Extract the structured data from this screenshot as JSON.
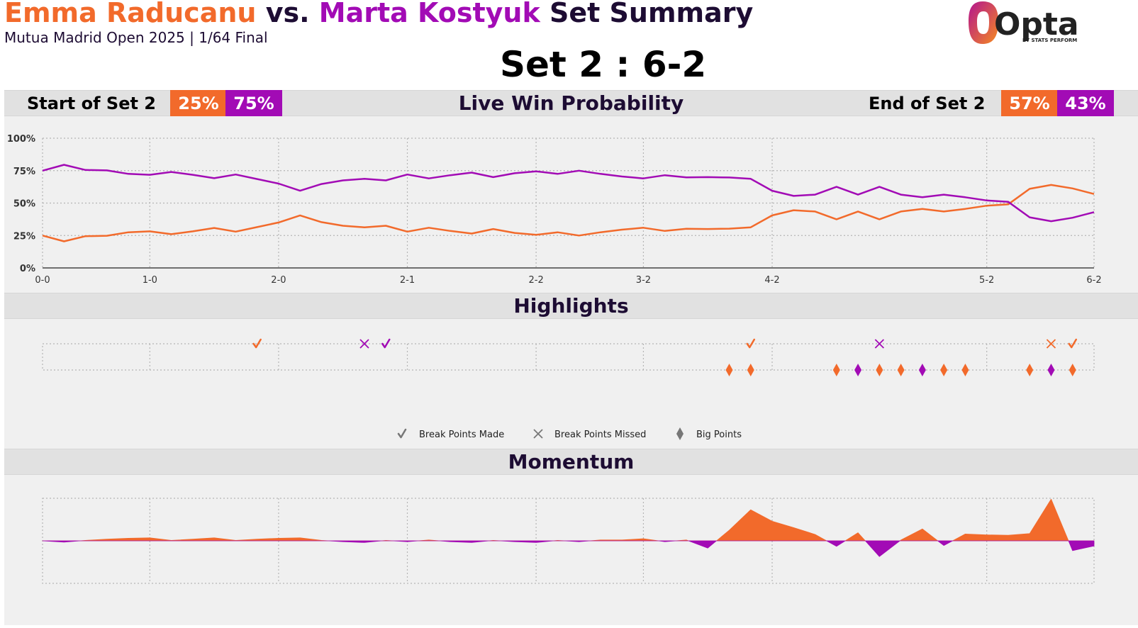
{
  "header": {
    "player1": "Emma Raducanu",
    "vs": "vs.",
    "player2": "Marta Kostyuk",
    "suffix": "Set Summary",
    "subtitle": "Mutua Madrid Open 2025 | 1/64 Final",
    "set_score": "Set 2 : 6-2",
    "logo_text": "Opta",
    "logo_sub": "BY STATS PERFORM"
  },
  "colors": {
    "player1": "#f26a2b",
    "player2": "#a20bb5",
    "title": "#1d0c33"
  },
  "probability_band": {
    "title": "Live Win Probability",
    "start_label": "Start of Set 2",
    "start_p1": "25%",
    "start_p2": "75%",
    "end_label": "End of Set 2",
    "end_p1": "57%",
    "end_p2": "43%"
  },
  "highlights_band": {
    "title": "Highlights"
  },
  "momentum_band": {
    "title": "Momentum"
  },
  "legend": {
    "made": "Break Points Made",
    "missed": "Break Points Missed",
    "big": "Big Points"
  },
  "chart_data": [
    {
      "type": "line",
      "y_ticks": [
        "0%",
        "25%",
        "50%",
        "75%",
        "100%"
      ],
      "ylim": [
        0,
        100
      ],
      "x_range": [
        0,
        49
      ],
      "game_ticks": [
        {
          "x": 0,
          "label": "0-0"
        },
        {
          "x": 5,
          "label": "1-0"
        },
        {
          "x": 11,
          "label": "2-0"
        },
        {
          "x": 17,
          "label": "2-1"
        },
        {
          "x": 23,
          "label": "2-2"
        },
        {
          "x": 28,
          "label": "3-2"
        },
        {
          "x": 34,
          "label": "4-2"
        },
        {
          "x": 44,
          "label": "5-2"
        },
        {
          "x": 49,
          "label": "6-2"
        }
      ],
      "series": [
        {
          "name": "Emma Raducanu",
          "color": "#f26a2b",
          "values": [
            25,
            20.5,
            24.5,
            24.8,
            27.5,
            28.2,
            26,
            28.2,
            30.8,
            28,
            31.5,
            35,
            40.5,
            35.3,
            32.5,
            31.3,
            32.5,
            28,
            31,
            28.5,
            26.5,
            30,
            27,
            25.5,
            27.5,
            25,
            27.5,
            29.5,
            31,
            28.5,
            30.2,
            30,
            30.3,
            31.3,
            40.5,
            44.5,
            43.5,
            37.5,
            43.5,
            37.5,
            43.5,
            45.5,
            43.5,
            45.5,
            48,
            49,
            61,
            64,
            61.3,
            57
          ]
        },
        {
          "name": "Marta Kostyuk",
          "color": "#a20bb5",
          "values": [
            75,
            79.5,
            75.5,
            75.2,
            72.5,
            71.8,
            74,
            71.8,
            69.2,
            72,
            68.5,
            65,
            59.5,
            64.7,
            67.5,
            68.7,
            67.5,
            72,
            69,
            71.5,
            73.5,
            70,
            73,
            74.5,
            72.5,
            75,
            72.5,
            70.5,
            69,
            71.5,
            69.8,
            70,
            69.7,
            68.7,
            59.5,
            55.5,
            56.5,
            62.5,
            56.5,
            62.5,
            56.5,
            54.5,
            56.5,
            54.5,
            52,
            51,
            39,
            36,
            38.7,
            43
          ]
        }
      ]
    },
    {
      "type": "scatter",
      "rows": [
        "break points",
        "big points"
      ],
      "break_points": [
        {
          "x": 10,
          "kind": "made",
          "player": "Emma Raducanu"
        },
        {
          "x": 15,
          "kind": "missed",
          "player": "Marta Kostyuk"
        },
        {
          "x": 16,
          "kind": "made",
          "player": "Marta Kostyuk"
        },
        {
          "x": 33,
          "kind": "made",
          "player": "Emma Raducanu"
        },
        {
          "x": 39,
          "kind": "missed",
          "player": "Marta Kostyuk"
        },
        {
          "x": 47,
          "kind": "missed",
          "player": "Emma Raducanu"
        },
        {
          "x": 48,
          "kind": "made",
          "player": "Emma Raducanu"
        }
      ],
      "big_points": [
        {
          "x": 32,
          "player": "Emma Raducanu"
        },
        {
          "x": 33,
          "player": "Emma Raducanu"
        },
        {
          "x": 37,
          "player": "Emma Raducanu"
        },
        {
          "x": 38,
          "player": "Marta Kostyuk"
        },
        {
          "x": 39,
          "player": "Emma Raducanu"
        },
        {
          "x": 40,
          "player": "Emma Raducanu"
        },
        {
          "x": 41,
          "player": "Marta Kostyuk"
        },
        {
          "x": 42,
          "player": "Emma Raducanu"
        },
        {
          "x": 43,
          "player": "Emma Raducanu"
        },
        {
          "x": 46,
          "player": "Emma Raducanu"
        },
        {
          "x": 47,
          "player": "Marta Kostyuk"
        },
        {
          "x": 48,
          "player": "Emma Raducanu"
        }
      ]
    },
    {
      "type": "area",
      "ylim": [
        -1,
        1
      ],
      "values": [
        0,
        -0.03,
        0.01,
        0.04,
        0.06,
        0.07,
        0.01,
        0.04,
        0.07,
        0.01,
        0.04,
        0.06,
        0.07,
        0.01,
        -0.02,
        -0.04,
        0.01,
        -0.02,
        0.02,
        -0.02,
        -0.04,
        0.01,
        -0.02,
        -0.04,
        0.01,
        -0.02,
        0.02,
        0.02,
        0.05,
        -0.02,
        0.02,
        -0.17,
        0.25,
        0.73,
        0.46,
        0.31,
        0.15,
        -0.13,
        0.19,
        -0.37,
        0.02,
        0.28,
        -0.11,
        0.16,
        0.14,
        0.13,
        0.17,
        0.98,
        -0.23,
        -0.12
      ]
    }
  ]
}
